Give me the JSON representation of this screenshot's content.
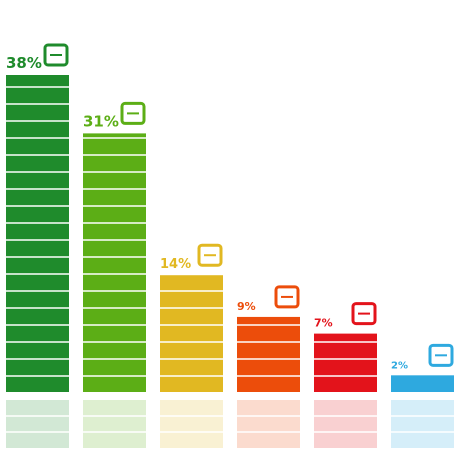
{
  "chart_data": {
    "type": "bar",
    "values": [
      38,
      31,
      14,
      9,
      7,
      2
    ],
    "value_labels": [
      "38%",
      "31%",
      "14%",
      "9%",
      "7%",
      "2%"
    ],
    "colors": [
      "#1f8b2c",
      "#5cae16",
      "#e1b822",
      "#ec4d0b",
      "#e3131b",
      "#2ea9df"
    ]
  }
}
